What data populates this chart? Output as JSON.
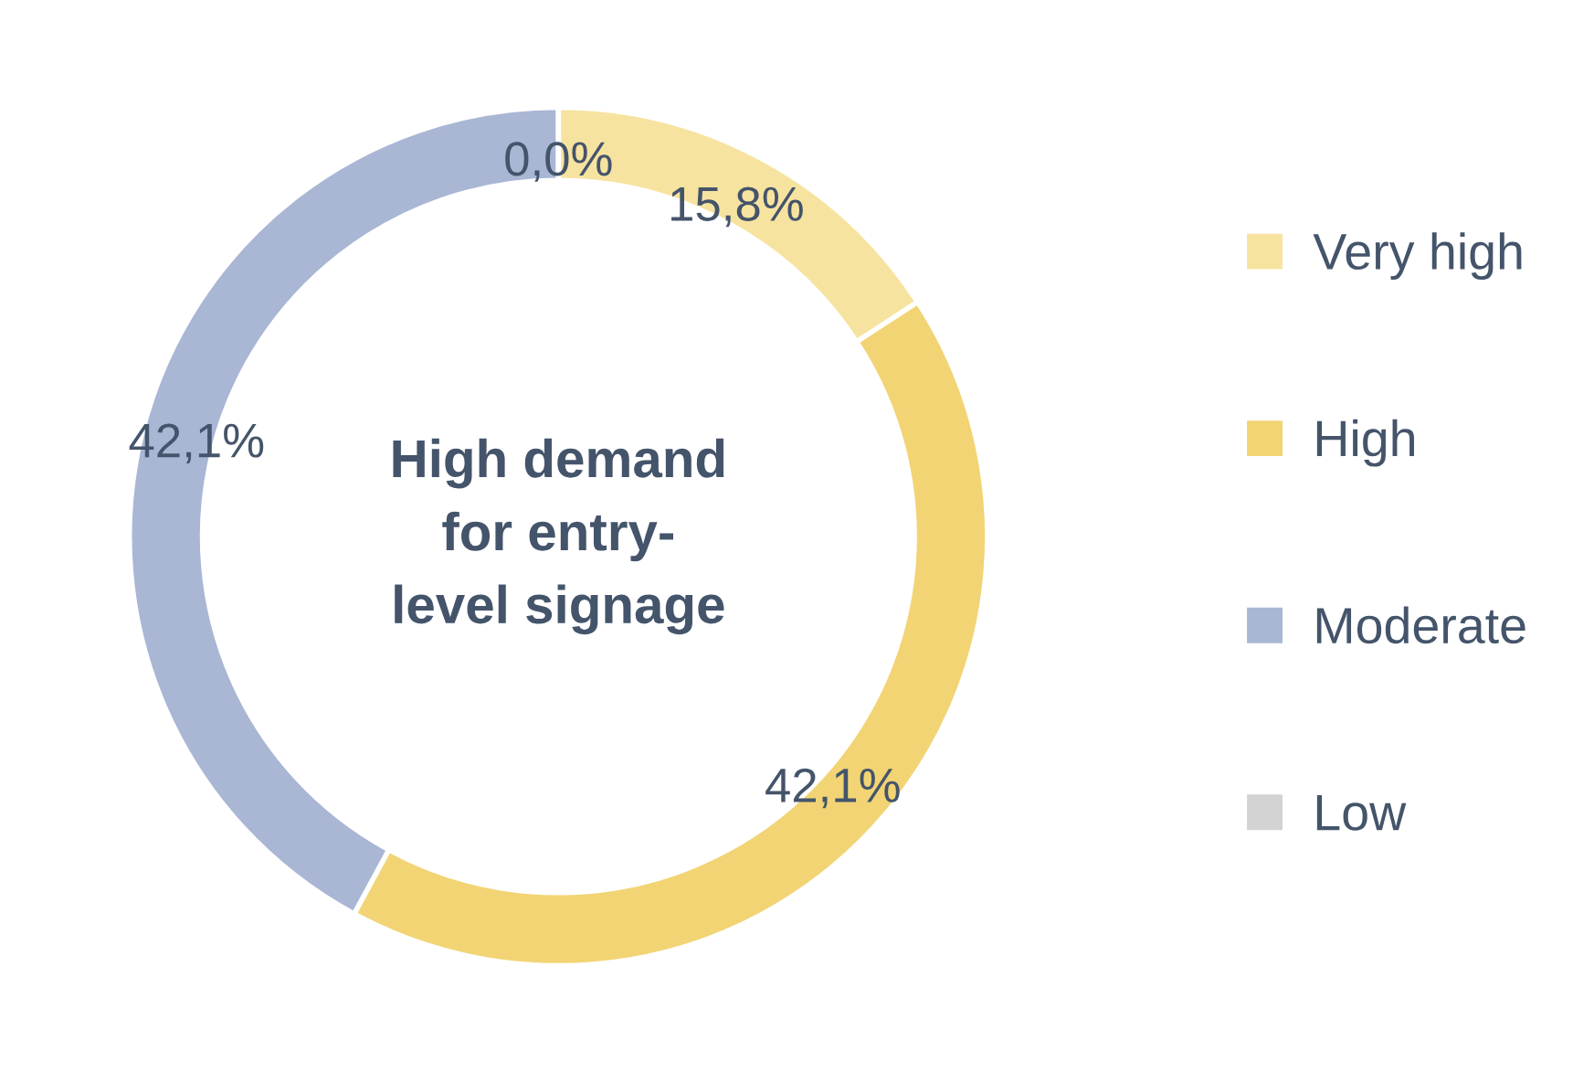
{
  "chart_data": {
    "type": "donut",
    "title": "High demand\nfor entry-\nlevel signage",
    "categories": [
      "Very high",
      "High",
      "Moderate",
      "Low"
    ],
    "values": [
      15.8,
      42.1,
      42.1,
      0.0
    ],
    "value_labels": [
      "15,8%",
      "42,1%",
      "42,1%",
      "0,0%"
    ],
    "colors": [
      "#f7e3a0",
      "#f2d474",
      "#a9b6d4",
      "#d3d3d3"
    ],
    "legend": "right"
  }
}
